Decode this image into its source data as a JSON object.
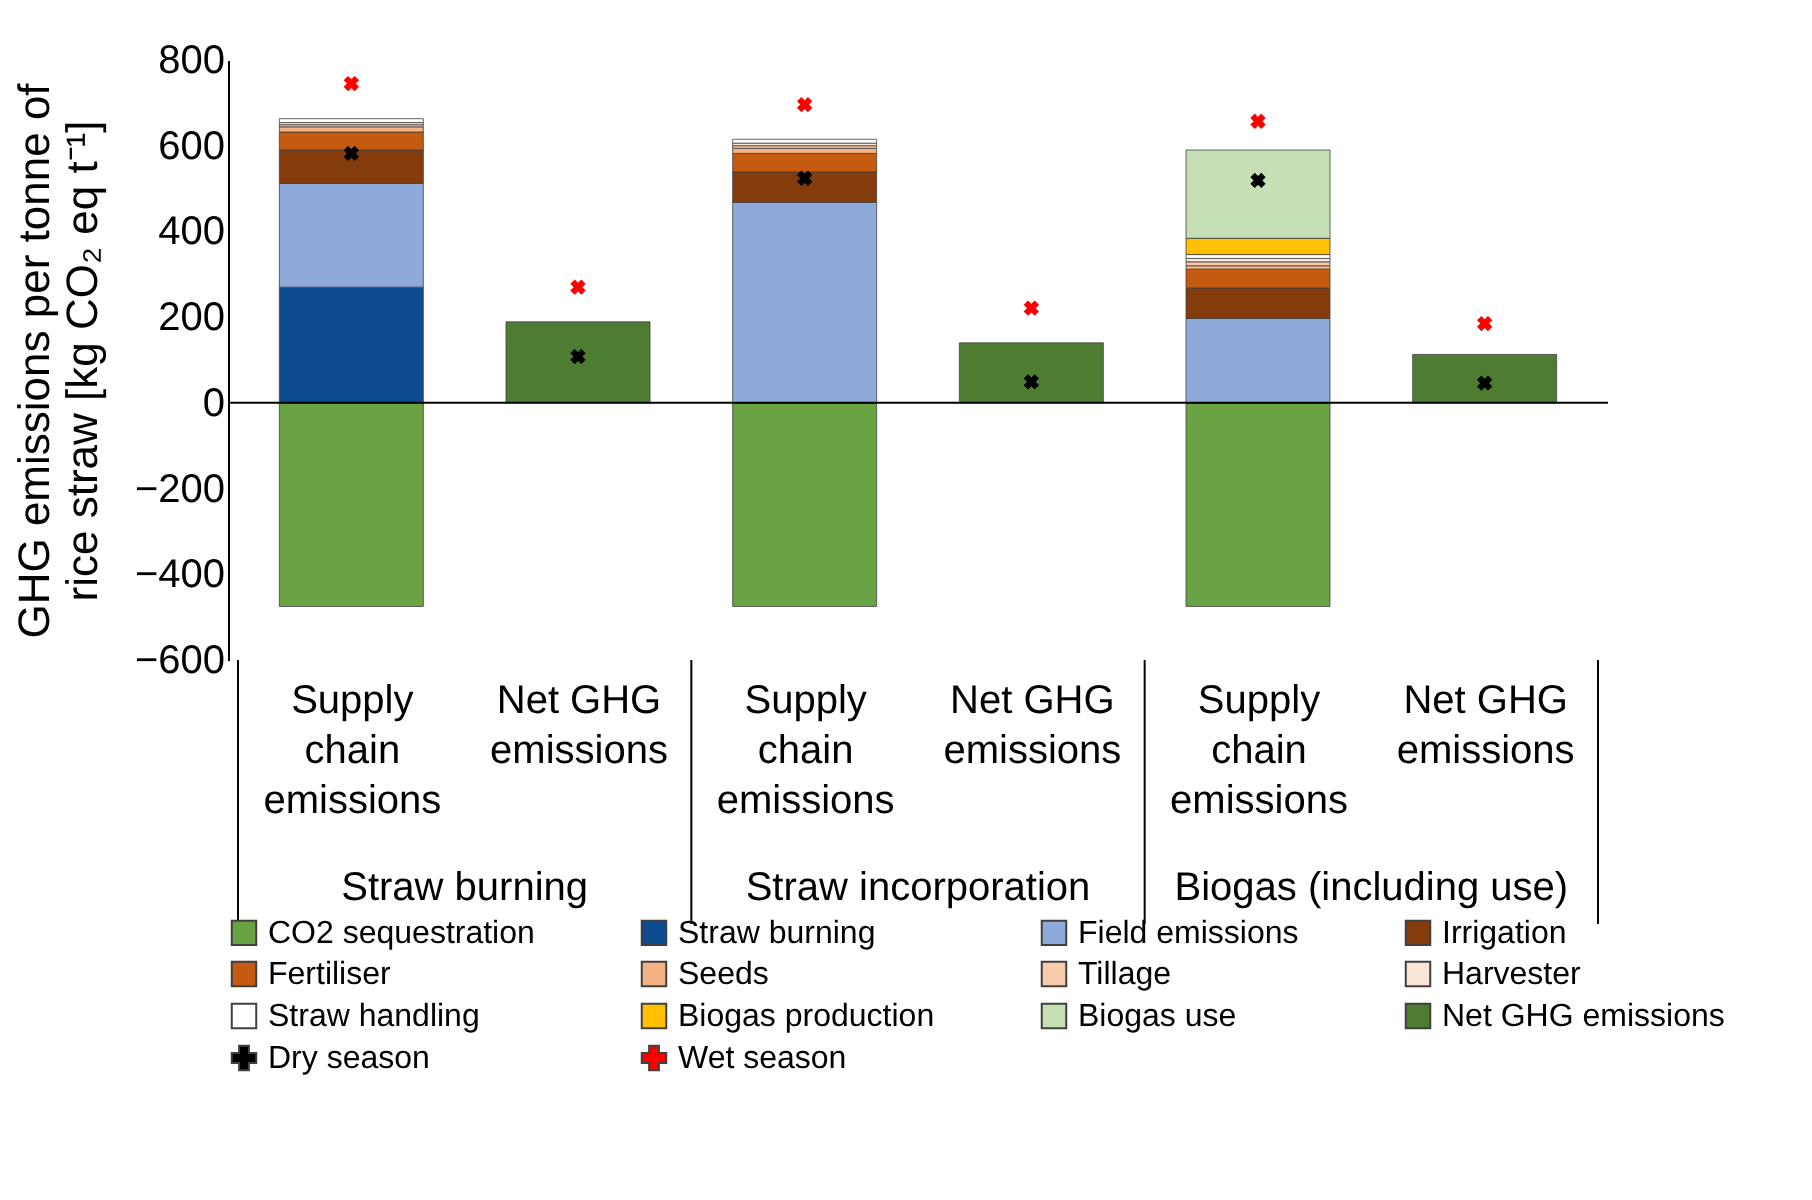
{
  "chart_data": {
    "type": "bar",
    "stacked": true,
    "ylabel": "GHG emissions per tonne of rice straw [kg CO₂ eq t⁻¹]",
    "categories": [
      "Supply chain emissions",
      "Net GHG emissions",
      "Supply chain emissions",
      "Net GHG emissions",
      "Supply chain emissions",
      "Net GHG emissions"
    ],
    "annotations": [
      "Straw burning",
      "Straw incorporation",
      "Biogas (including use)"
    ],
    "ylim": [
      -600,
      800
    ],
    "yticks": [
      -600,
      -400,
      -200,
      0,
      200,
      400,
      600,
      800
    ],
    "grid": false,
    "legend": "bottom",
    "ref_lines": [
      {
        "axis": "y",
        "value": 0,
        "color": "#000000",
        "line_style": "solid"
      }
    ],
    "series": [
      {
        "name": "CO2 sequestration",
        "color": "#6aa343",
        "values": [
          -475,
          null,
          -475,
          null,
          -475,
          null
        ]
      },
      {
        "name": "Straw burning",
        "color": "#0e4c92",
        "values": [
          270,
          null,
          null,
          null,
          null,
          null
        ]
      },
      {
        "name": "Field emissions",
        "color": "#8eaadb",
        "values": [
          242,
          null,
          468,
          null,
          197,
          null
        ]
      },
      {
        "name": "Irrigation",
        "color": "#843c0c",
        "values": [
          78,
          null,
          71,
          null,
          71,
          null
        ]
      },
      {
        "name": "Fertiliser",
        "color": "#c55a11",
        "values": [
          42,
          null,
          43,
          null,
          44,
          null
        ]
      },
      {
        "name": "Seeds",
        "color": "#f4b183",
        "values": [
          12,
          null,
          12,
          null,
          8,
          null
        ]
      },
      {
        "name": "Tillage",
        "color": "#f8cbad",
        "values": [
          5,
          null,
          6,
          null,
          9,
          null
        ]
      },
      {
        "name": "Harvester",
        "color": "#fbe5d6",
        "values": [
          5,
          null,
          6,
          null,
          8,
          null
        ]
      },
      {
        "name": "Straw handling",
        "color": "#ffffff",
        "values": [
          9,
          null,
          9,
          null,
          9,
          null
        ]
      },
      {
        "name": "Biogas production",
        "color": "#ffc000",
        "values": [
          null,
          null,
          null,
          null,
          38,
          null
        ]
      },
      {
        "name": "Biogas use",
        "color": "#c5e0b4",
        "values": [
          null,
          null,
          null,
          null,
          206,
          null
        ]
      },
      {
        "name": "Net GHG emissions",
        "color": "#4e7d31",
        "values": [
          null,
          189,
          null,
          140,
          null,
          113
        ]
      },
      {
        "name": "Dry season",
        "type": "scatter",
        "marker": "cross",
        "color": "#000000",
        "values": [
          582,
          108,
          524,
          49,
          519,
          46
        ]
      },
      {
        "name": "Wet season",
        "type": "scatter",
        "marker": "cross",
        "color": "#ff0000",
        "values": [
          745,
          270,
          696,
          221,
          657,
          185
        ]
      }
    ]
  }
}
